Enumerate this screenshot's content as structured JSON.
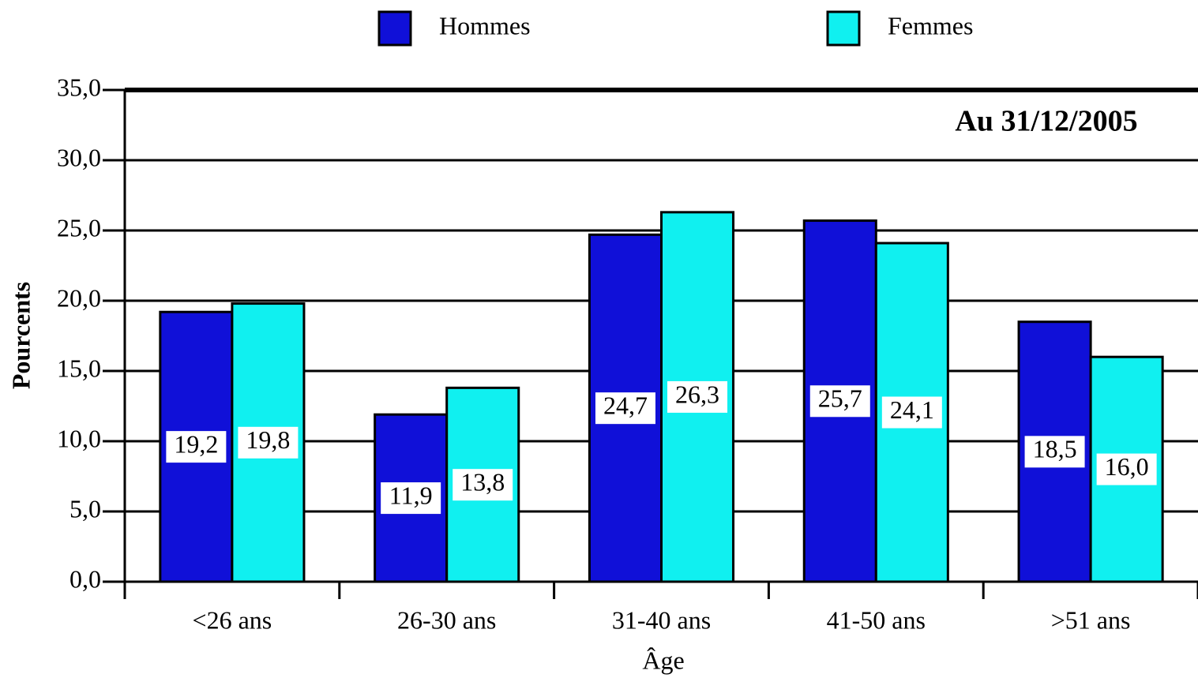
{
  "chart_data": {
    "type": "bar",
    "annotation": "Au 31/12/2005",
    "xlabel": "Âge",
    "ylabel": "Pourcents",
    "categories": [
      "<26 ans",
      "26-30 ans",
      "31-40 ans",
      "41-50 ans",
      ">51 ans"
    ],
    "series": [
      {
        "name": "Hommes",
        "color": "#1010d8",
        "values": [
          19.2,
          11.9,
          24.7,
          25.7,
          18.5
        ],
        "value_labels": [
          "19,2",
          "11,9",
          "24,7",
          "25,7",
          "18,5"
        ]
      },
      {
        "name": "Femmes",
        "color": "#10f0f0",
        "values": [
          19.8,
          13.8,
          26.3,
          24.1,
          16.0
        ],
        "value_labels": [
          "19,8",
          "13,8",
          "26,3",
          "24,1",
          "16,0"
        ]
      }
    ],
    "ylim": [
      0,
      35
    ],
    "yticks": [
      {
        "value": 0,
        "label": "0,0"
      },
      {
        "value": 5,
        "label": "5,0"
      },
      {
        "value": 10,
        "label": "10,0"
      },
      {
        "value": 15,
        "label": "15,0"
      },
      {
        "value": 20,
        "label": "20,0"
      },
      {
        "value": 25,
        "label": "25,0"
      },
      {
        "value": 30,
        "label": "30,0"
      },
      {
        "value": 35,
        "label": "35,0"
      }
    ],
    "grid": true,
    "legend": "top"
  }
}
